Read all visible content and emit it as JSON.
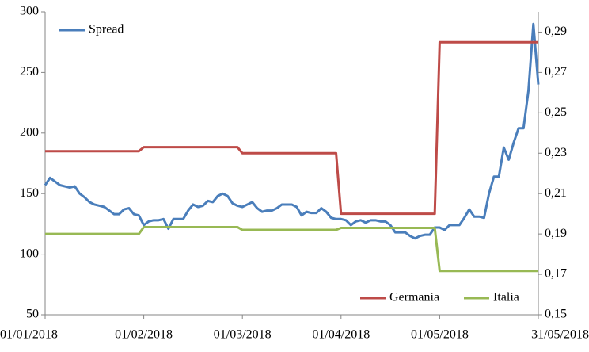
{
  "chart_data": {
    "type": "line",
    "categories": [
      "01/01/2018",
      null,
      null,
      null,
      null,
      null,
      null,
      null,
      null,
      null,
      null,
      null,
      null,
      null,
      null,
      null,
      null,
      null,
      null,
      null,
      "01/02/2018",
      null,
      null,
      null,
      null,
      null,
      null,
      null,
      null,
      null,
      null,
      null,
      null,
      null,
      null,
      null,
      null,
      null,
      null,
      null,
      "01/03/2018",
      null,
      null,
      null,
      null,
      null,
      null,
      null,
      null,
      null,
      null,
      null,
      null,
      null,
      null,
      null,
      null,
      null,
      null,
      null,
      "01/04/2018",
      null,
      null,
      null,
      null,
      null,
      null,
      null,
      null,
      null,
      null,
      null,
      null,
      null,
      null,
      null,
      null,
      null,
      null,
      null,
      "01/05/2018",
      null,
      null,
      null,
      null,
      null,
      null,
      null,
      null,
      null,
      null,
      null,
      null,
      null,
      null,
      null,
      null,
      null,
      null,
      null,
      "31/05/2018"
    ],
    "series": [
      {
        "name": "Spread",
        "color": "#4a7ebb",
        "values": [
          157,
          163,
          160,
          157,
          156,
          155,
          156,
          150,
          147,
          143,
          141,
          140,
          139,
          136,
          133,
          133,
          137,
          138,
          133,
          132,
          124,
          127,
          128,
          128,
          129,
          121,
          129,
          129,
          129,
          136,
          141,
          139,
          140,
          144,
          143,
          148,
          150,
          148,
          142,
          140,
          139,
          141,
          143,
          138,
          135,
          136,
          136,
          138,
          141,
          141,
          141,
          139,
          132,
          135,
          134,
          134,
          138,
          135,
          130,
          129,
          129,
          128,
          124,
          127,
          128,
          126,
          128,
          128,
          127,
          127,
          124,
          118,
          118,
          118,
          115,
          113,
          115,
          116,
          116,
          122,
          122,
          120,
          124,
          124,
          124,
          130,
          137,
          131,
          131,
          130,
          150,
          164,
          164,
          188,
          178,
          192,
          204,
          204,
          235,
          290,
          240
        ]
      },
      {
        "name": "Germania",
        "color": "#be4b48",
        "axis": "y2",
        "values": [
          0.231,
          0.231,
          0.231,
          0.231,
          0.231,
          0.231,
          0.231,
          0.231,
          0.231,
          0.231,
          0.231,
          0.231,
          0.231,
          0.231,
          0.231,
          0.231,
          0.231,
          0.231,
          0.231,
          0.231,
          0.233,
          0.233,
          0.233,
          0.233,
          0.233,
          0.233,
          0.233,
          0.233,
          0.233,
          0.233,
          0.233,
          0.233,
          0.233,
          0.233,
          0.233,
          0.233,
          0.233,
          0.233,
          0.233,
          0.233,
          0.23,
          0.23,
          0.23,
          0.23,
          0.23,
          0.23,
          0.23,
          0.23,
          0.23,
          0.23,
          0.23,
          0.23,
          0.23,
          0.23,
          0.23,
          0.23,
          0.23,
          0.23,
          0.23,
          0.23,
          0.2,
          0.2,
          0.2,
          0.2,
          0.2,
          0.2,
          0.2,
          0.2,
          0.2,
          0.2,
          0.2,
          0.2,
          0.2,
          0.2,
          0.2,
          0.2,
          0.2,
          0.2,
          0.2,
          0.2,
          0.285,
          0.285,
          0.285,
          0.285,
          0.285,
          0.285,
          0.285,
          0.285,
          0.285,
          0.285,
          0.285,
          0.285,
          0.285,
          0.285,
          0.285,
          0.285,
          0.285,
          0.285,
          0.285,
          0.285,
          0.285
        ]
      },
      {
        "name": "Italia",
        "color": "#98b954",
        "axis": "y2",
        "values": [
          0.19,
          0.19,
          0.19,
          0.19,
          0.19,
          0.19,
          0.19,
          0.19,
          0.19,
          0.19,
          0.19,
          0.19,
          0.19,
          0.19,
          0.19,
          0.19,
          0.19,
          0.19,
          0.19,
          0.19,
          0.1934,
          0.1934,
          0.1934,
          0.1934,
          0.1934,
          0.1934,
          0.1934,
          0.1934,
          0.1934,
          0.1934,
          0.1934,
          0.1934,
          0.1934,
          0.1934,
          0.1934,
          0.1934,
          0.1934,
          0.1934,
          0.1934,
          0.1934,
          0.192,
          0.192,
          0.192,
          0.192,
          0.192,
          0.192,
          0.192,
          0.192,
          0.192,
          0.192,
          0.192,
          0.192,
          0.192,
          0.192,
          0.192,
          0.192,
          0.192,
          0.192,
          0.192,
          0.192,
          0.193,
          0.193,
          0.193,
          0.193,
          0.193,
          0.193,
          0.193,
          0.193,
          0.193,
          0.193,
          0.193,
          0.193,
          0.193,
          0.193,
          0.193,
          0.193,
          0.193,
          0.193,
          0.193,
          0.193,
          0.1717,
          0.1717,
          0.1717,
          0.1717,
          0.1717,
          0.1717,
          0.1717,
          0.1717,
          0.1717,
          0.1717,
          0.1717,
          0.1717,
          0.1717,
          0.1717,
          0.1717,
          0.1717,
          0.1717,
          0.1717,
          0.1717,
          0.1717,
          0.1717
        ]
      }
    ],
    "ylim": [
      50,
      300
    ],
    "yticks": [
      50,
      100,
      150,
      200,
      250,
      300
    ],
    "y2lim": [
      0.15,
      0.3
    ],
    "y2ticks": [
      {
        "value": 0.15,
        "label": "0,15"
      },
      {
        "value": 0.17,
        "label": "0,17"
      },
      {
        "value": 0.19,
        "label": "0,19"
      },
      {
        "value": 0.21,
        "label": "0,21"
      },
      {
        "value": 0.23,
        "label": "0,23"
      },
      {
        "value": 0.25,
        "label": "0,25"
      },
      {
        "value": 0.27,
        "label": "0,27"
      },
      {
        "value": 0.29,
        "label": "0,29"
      }
    ],
    "grid": false
  }
}
